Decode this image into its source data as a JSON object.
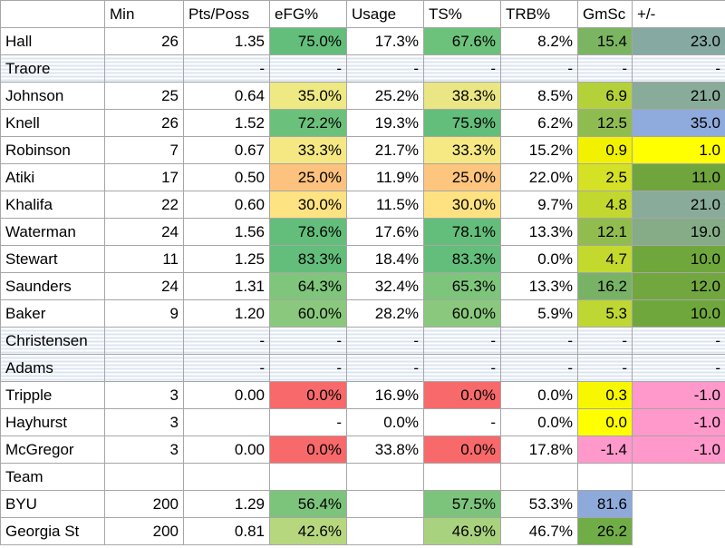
{
  "columns": [
    "",
    "Min",
    "Pts/Poss",
    "eFG%",
    "Usage",
    "TS%",
    "TRB%",
    "GmSc",
    "+/-"
  ],
  "rows": [
    {
      "cells": [
        "Hall",
        "26",
        "1.35",
        "75.0%",
        "17.3%",
        "67.6%",
        "8.2%",
        "15.4",
        "23.0"
      ],
      "colors": [
        null,
        null,
        null,
        "#63be7b",
        null,
        "#6cc17b",
        null,
        "#7cb561",
        "#86a9a2"
      ],
      "hatched": false
    },
    {
      "cells": [
        "Traore",
        "",
        "-",
        "-",
        "-",
        "-",
        "-",
        "-",
        "-"
      ],
      "colors": [
        null,
        null,
        null,
        null,
        null,
        null,
        null,
        null,
        null
      ],
      "hatched": true
    },
    {
      "cells": [
        "Johnson",
        "25",
        "0.64",
        "35.0%",
        "25.2%",
        "38.3%",
        "8.5%",
        "6.9",
        "21.0"
      ],
      "colors": [
        null,
        null,
        null,
        "#eee983",
        null,
        "#e9e683",
        null,
        "#b5d139",
        "#89ab9a"
      ],
      "hatched": false
    },
    {
      "cells": [
        "Knell",
        "26",
        "1.52",
        "72.2%",
        "19.3%",
        "75.9%",
        "6.2%",
        "12.5",
        "35.0"
      ],
      "colors": [
        null,
        null,
        null,
        "#6bc17b",
        null,
        "#63be7b",
        null,
        "#8fbc51",
        "#8faadc"
      ],
      "hatched": false
    },
    {
      "cells": [
        "Robinson",
        "7",
        "0.67",
        "33.3%",
        "21.7%",
        "33.3%",
        "15.2%",
        "0.9",
        "1.0"
      ],
      "colors": [
        null,
        null,
        null,
        "#f5e883",
        null,
        "#f6e883",
        null,
        "#f2f200",
        "#ffff00"
      ],
      "hatched": false
    },
    {
      "cells": [
        "Atiki",
        "17",
        "0.50",
        "25.0%",
        "11.9%",
        "25.0%",
        "22.0%",
        "2.5",
        "11.0"
      ],
      "colors": [
        null,
        null,
        null,
        "#fdc27d",
        null,
        "#fdc57d",
        null,
        "#d5e124",
        "#6fa53c"
      ],
      "hatched": false
    },
    {
      "cells": [
        "Khalifa",
        "22",
        "0.60",
        "30.0%",
        "11.5%",
        "30.0%",
        "9.7%",
        "4.8",
        "21.0"
      ],
      "colors": [
        null,
        null,
        null,
        "#fee382",
        null,
        "#fee282",
        null,
        "#c3d82f",
        "#89ab9a"
      ],
      "hatched": false
    },
    {
      "cells": [
        "Waterman",
        "24",
        "1.56",
        "78.6%",
        "17.6%",
        "78.1%",
        "13.3%",
        "12.1",
        "19.0"
      ],
      "colors": [
        null,
        null,
        null,
        "#63be7b",
        null,
        "#63be7b",
        null,
        "#91bd4f",
        "#85ac86"
      ],
      "hatched": false
    },
    {
      "cells": [
        "Stewart",
        "11",
        "1.25",
        "83.3%",
        "18.4%",
        "83.3%",
        "0.0%",
        "4.7",
        "10.0"
      ],
      "colors": [
        null,
        null,
        null,
        "#63be7b",
        null,
        "#63be7b",
        null,
        "#c4d92e",
        "#70a73c"
      ],
      "hatched": false
    },
    {
      "cells": [
        "Saunders",
        "24",
        "1.31",
        "64.3%",
        "32.4%",
        "65.3%",
        "13.3%",
        "16.2",
        "12.0"
      ],
      "colors": [
        null,
        null,
        null,
        "#7fc57c",
        null,
        "#7ec57c",
        null,
        "#78b365",
        "#72a63f"
      ],
      "hatched": false
    },
    {
      "cells": [
        "Baker",
        "9",
        "1.20",
        "60.0%",
        "28.2%",
        "60.0%",
        "5.9%",
        "5.3",
        "10.0"
      ],
      "colors": [
        null,
        null,
        null,
        "#8ac97d",
        null,
        "#8ac97d",
        null,
        "#bfd733",
        "#70a73c"
      ],
      "hatched": false
    },
    {
      "cells": [
        "Christensen",
        "",
        "-",
        "-",
        "-",
        "-",
        "-",
        "-",
        "-"
      ],
      "colors": [
        null,
        null,
        null,
        null,
        null,
        null,
        null,
        null,
        null
      ],
      "hatched": true
    },
    {
      "cells": [
        "Adams",
        "",
        "-",
        "-",
        "-",
        "-",
        "-",
        "-",
        "-"
      ],
      "colors": [
        null,
        null,
        null,
        null,
        null,
        null,
        null,
        null,
        null
      ],
      "hatched": true
    },
    {
      "cells": [
        "Tripple",
        "3",
        "0.00",
        "0.0%",
        "16.9%",
        "0.0%",
        "0.0%",
        "0.3",
        "-1.0"
      ],
      "colors": [
        null,
        null,
        null,
        "#f8696b",
        null,
        "#f8696b",
        null,
        "#f7f700",
        "#ff99cc"
      ],
      "hatched": false
    },
    {
      "cells": [
        "Hayhurst",
        "3",
        "",
        "-",
        "0.0%",
        "-",
        "0.0%",
        "0.0",
        "-1.0"
      ],
      "colors": [
        null,
        null,
        null,
        null,
        null,
        null,
        null,
        "#ffff00",
        "#ff99cc"
      ],
      "hatched": false
    },
    {
      "cells": [
        "McGregor",
        "3",
        "0.00",
        "0.0%",
        "33.8%",
        "0.0%",
        "17.8%",
        "-1.4",
        "-1.0"
      ],
      "colors": [
        null,
        null,
        null,
        "#f8696b",
        null,
        "#f8696b",
        null,
        "#ff99cc",
        "#ff99cc"
      ],
      "hatched": false
    },
    {
      "cells": [
        "Team",
        "",
        "",
        "",
        "",
        "",
        "",
        "",
        ""
      ],
      "colors": [
        null,
        null,
        null,
        null,
        null,
        null,
        null,
        null,
        null
      ],
      "hatched": false,
      "team_header": true
    },
    {
      "cells": [
        "BYU",
        "200",
        "1.29",
        "56.4%",
        "",
        "57.5%",
        "53.3%",
        "81.6",
        ""
      ],
      "colors": [
        null,
        null,
        null,
        "#7cc47c",
        null,
        "#7cc47c",
        null,
        "#8eaadb",
        null
      ],
      "hatched": false,
      "team_row": true
    },
    {
      "cells": [
        "Georgia St",
        "200",
        "0.81",
        "42.6%",
        "",
        "46.9%",
        "46.7%",
        "26.2",
        ""
      ],
      "colors": [
        null,
        null,
        null,
        "#b7d77f",
        null,
        "#a9d27f",
        null,
        "#70ad47",
        null
      ],
      "hatched": false,
      "team_row": true
    }
  ]
}
